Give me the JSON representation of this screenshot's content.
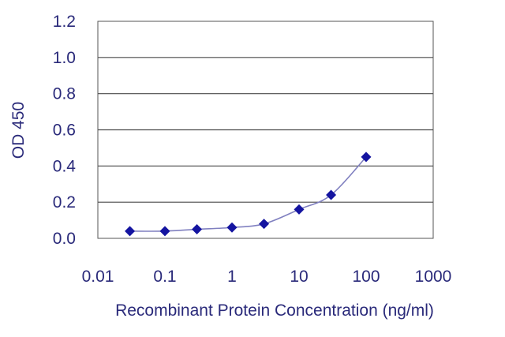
{
  "chart_data": {
    "type": "line",
    "title": "",
    "xlabel": "Recombinant Protein Concentration (ng/ml)",
    "ylabel": "OD 450",
    "x_scale": "log",
    "xlim": [
      0.01,
      1000
    ],
    "ylim": [
      0,
      1.2
    ],
    "x_ticks": [
      "0.01",
      "0.1",
      "1",
      "10",
      "100",
      "1000"
    ],
    "y_ticks": [
      "0.0",
      "0.2",
      "0.4",
      "0.6",
      "0.8",
      "1.0",
      "1.2"
    ],
    "grid": "horizontal",
    "marker": "diamond",
    "line_color": "#8080c0",
    "marker_color": "#1414a0",
    "series": [
      {
        "x": [
          0.03,
          0.1,
          0.3,
          1,
          3,
          10,
          30,
          100
        ],
        "y": [
          0.04,
          0.04,
          0.05,
          0.06,
          0.08,
          0.16,
          0.24,
          0.45
        ]
      }
    ]
  }
}
